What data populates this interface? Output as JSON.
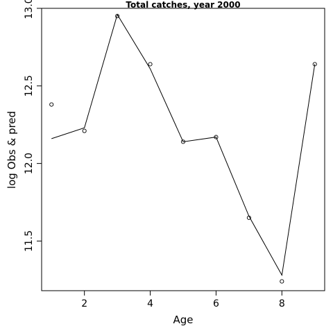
{
  "chart_data": {
    "type": "line",
    "title": "Total catches, year 2000",
    "xlabel": "Age",
    "ylabel": "log Obs & pred",
    "xlim": [
      0.7,
      9.3
    ],
    "ylim": [
      11.18,
      13.0
    ],
    "xticks": [
      2,
      4,
      6,
      8
    ],
    "xtick_labels": [
      "2",
      "4",
      "6",
      "8"
    ],
    "yticks": [
      11.5,
      12.0,
      12.5,
      13.0
    ],
    "ytick_labels": [
      "11.5",
      "12.0",
      "12.5",
      "13.0"
    ],
    "grid": false,
    "series": [
      {
        "style": "points-open-circle",
        "x": [
          1,
          2,
          3,
          4,
          5,
          6,
          7,
          8,
          9
        ],
        "values": [
          12.38,
          12.21,
          12.95,
          12.64,
          12.14,
          12.17,
          11.65,
          11.24,
          12.64
        ]
      },
      {
        "style": "line",
        "x": [
          1,
          2,
          3,
          4,
          5,
          6,
          7,
          8,
          9
        ],
        "values": [
          12.16,
          12.23,
          12.96,
          12.61,
          12.14,
          12.17,
          11.66,
          11.28,
          12.64
        ]
      }
    ]
  }
}
